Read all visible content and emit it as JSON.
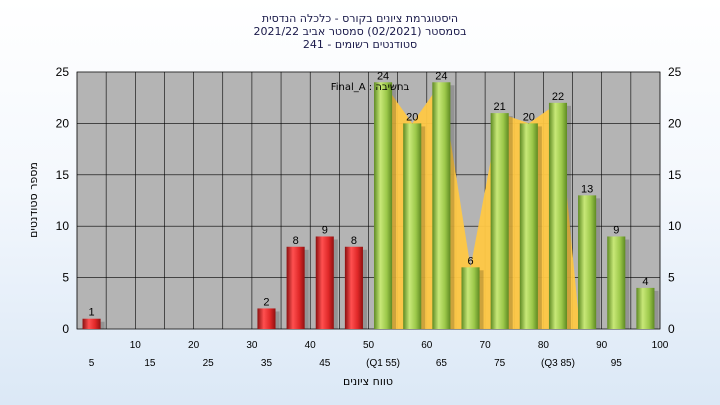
{
  "chart_data": {
    "type": "bar",
    "title": [
      "היסטוגרמת ציונים בקורס - כלכלה הנדסית",
      "בסמסטר  (02/2021)  סמסטר אביב 2021/22",
      "סטודנטים רשומים - 241"
    ],
    "xlabel": "טווח ציונים",
    "ylabel": "מספר סטודנטים",
    "ylim": [
      0,
      25
    ],
    "yticks": [
      0,
      5,
      10,
      15,
      20,
      25
    ],
    "legend": "בחשיבה : Final_A",
    "categories": [
      "5",
      "10",
      "15",
      "20",
      "25",
      "30",
      "35",
      "40",
      "45",
      "50",
      "55",
      "60",
      "65",
      "70",
      "75",
      "80",
      "85",
      "90",
      "95",
      "100"
    ],
    "x_tick_labels": [
      "5",
      "10",
      "15",
      "20",
      "25",
      "30",
      "35",
      "40",
      "45",
      "50",
      "(Q1 55)",
      "60",
      "65",
      "70",
      "75",
      "80",
      "(Q3 85)",
      "90",
      "95",
      "100"
    ],
    "values": [
      1,
      0,
      0,
      0,
      0,
      0,
      2,
      8,
      9,
      8,
      24,
      20,
      24,
      6,
      21,
      20,
      22,
      13,
      9,
      4
    ],
    "bar_colors": [
      "red",
      "red",
      "red",
      "red",
      "red",
      "red",
      "red",
      "red",
      "red",
      "red",
      "green",
      "green",
      "green",
      "green",
      "green",
      "green",
      "green",
      "green",
      "green",
      "green"
    ],
    "quartile_band": {
      "from": "55",
      "to": "85"
    },
    "colors": {
      "plot_background": "#b4b4b4",
      "red_bar": "#e03030",
      "green_bar": "#9cc84a",
      "quartile_area": "#ffc845",
      "grid": "#000000"
    },
    "grid": true
  }
}
